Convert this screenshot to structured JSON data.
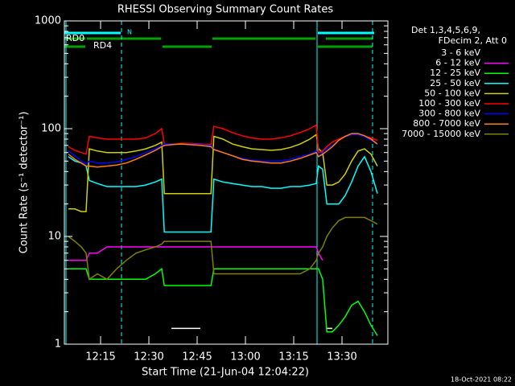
{
  "chart_data": {
    "type": "line",
    "title": "RHESSI Observing Summary Count Rates",
    "xlabel": "Start Time (21-Jun-04 12:04:22)",
    "ylabel": "Count Rate (s⁻¹ detector⁻¹)",
    "legend_title": [
      "Det 1,3,4,5,6,9,",
      "FDecim 2, Att 0"
    ],
    "annotations": [
      "RD0",
      "RD4",
      "N"
    ],
    "footer": "18-Oct-2021 08:22",
    "yscale": "log",
    "xlim": [
      3.75,
      104.25
    ],
    "ylim": [
      1,
      1000
    ],
    "xticks": [
      {
        "value": 15,
        "label": "12:15"
      },
      {
        "value": 30,
        "label": "12:30"
      },
      {
        "value": 45,
        "label": "12:45"
      },
      {
        "value": 60,
        "label": "13:00"
      },
      {
        "value": 75,
        "label": "13:15"
      },
      {
        "value": 90,
        "label": "13:30"
      }
    ],
    "yticks": [
      1,
      10,
      100,
      1000
    ],
    "x": [
      5,
      7,
      9,
      10.5,
      11.5,
      14,
      17,
      20,
      23,
      26,
      29,
      32,
      34,
      34.8,
      37,
      40,
      43,
      46,
      49.3,
      50.2,
      53,
      56,
      59,
      62,
      65,
      68,
      71,
      74,
      77,
      80,
      82,
      82.7,
      84,
      85.3,
      87,
      89,
      91,
      93,
      95,
      97,
      99,
      101
    ],
    "series": [
      {
        "name": "3 - 6 keV",
        "color": "#000000",
        "values": [
          null,
          null,
          null,
          null,
          null,
          null,
          null,
          null,
          null,
          null,
          null,
          null,
          null,
          null,
          1.4,
          1.4,
          1.4,
          1.4,
          null,
          null,
          null,
          null,
          null,
          null,
          null,
          null,
          null,
          null,
          null,
          null,
          null,
          null,
          null,
          1.4,
          1.4,
          null,
          null,
          null,
          null,
          null,
          null,
          null
        ]
      },
      {
        "name": "6 - 12 keV",
        "color": "#ff00ff",
        "values": [
          6,
          6,
          6,
          6,
          7,
          7,
          8,
          8,
          8,
          8,
          8,
          8,
          8,
          8,
          8,
          8,
          8,
          8,
          8,
          8,
          8,
          8,
          8,
          8,
          8,
          8,
          8,
          8,
          8,
          8,
          8,
          7,
          6,
          null,
          null,
          null,
          null,
          null,
          null,
          null,
          null,
          null
        ]
      },
      {
        "name": "12 - 25 keV",
        "color": "#00ff00",
        "values": [
          5,
          5,
          5,
          5,
          4,
          4,
          4,
          4,
          4,
          4,
          4,
          4.5,
          5,
          3.5,
          3.5,
          3.5,
          3.5,
          3.5,
          3.5,
          5,
          5,
          5,
          5,
          5,
          5,
          5,
          5,
          5,
          5,
          5,
          5,
          5,
          4,
          1.3,
          1.3,
          1.5,
          1.8,
          2.3,
          2.5,
          2,
          1.5,
          1.2
        ]
      },
      {
        "name": "25 - 50 keV",
        "color": "#00ffff",
        "values": [
          55,
          50,
          48,
          45,
          33,
          31,
          29,
          29,
          29,
          29,
          30,
          32,
          34,
          11,
          11,
          11,
          11,
          11,
          11,
          34,
          32,
          31,
          30,
          29,
          29,
          28,
          28,
          29,
          29,
          30,
          31,
          45,
          42,
          20,
          20,
          20,
          24,
          32,
          45,
          55,
          40,
          25
        ]
      },
      {
        "name": "50 - 100 keV",
        "color": "#d0d000",
        "values": [
          18,
          18,
          17,
          17,
          65,
          62,
          60,
          60,
          60,
          62,
          65,
          70,
          75,
          25,
          25,
          25,
          25,
          25,
          25,
          85,
          80,
          72,
          68,
          65,
          64,
          63,
          64,
          67,
          72,
          80,
          88,
          65,
          60,
          30,
          30,
          32,
          38,
          50,
          62,
          65,
          58,
          45
        ]
      },
      {
        "name": "100 - 300 keV",
        "color": "#ff0000",
        "values": [
          68,
          63,
          60,
          58,
          85,
          82,
          80,
          80,
          80,
          80,
          82,
          90,
          100,
          72,
          72,
          73,
          73,
          72,
          71,
          105,
          100,
          92,
          86,
          82,
          80,
          80,
          82,
          86,
          92,
          100,
          108,
          60,
          62,
          68,
          75,
          80,
          85,
          88,
          88,
          85,
          82,
          78
        ]
      },
      {
        "name": "300 - 800 keV",
        "color": "#0000ff",
        "values": [
          62,
          56,
          50,
          47,
          50,
          48,
          48,
          49,
          52,
          55,
          60,
          65,
          70,
          72,
          72,
          72,
          72,
          71,
          70,
          65,
          60,
          56,
          53,
          51,
          50,
          50,
          50,
          52,
          55,
          58,
          62,
          56,
          60,
          65,
          70,
          78,
          84,
          88,
          88,
          84,
          78,
          72
        ]
      },
      {
        "name": "800 - 7000 keV",
        "color": "#ff8000",
        "values": [
          58,
          52,
          48,
          45,
          45,
          44,
          45,
          46,
          48,
          52,
          57,
          63,
          68,
          70,
          71,
          72,
          71,
          70,
          68,
          64,
          60,
          56,
          52,
          50,
          49,
          48,
          48,
          50,
          53,
          57,
          60,
          55,
          58,
          62,
          68,
          78,
          85,
          90,
          90,
          86,
          80,
          72
        ]
      },
      {
        "name": "7000 - 15000 keV",
        "color": "#808000",
        "values": [
          10,
          9,
          8,
          7,
          4,
          4.5,
          4,
          5,
          6,
          7,
          7.5,
          8,
          8.5,
          9,
          9,
          9,
          9,
          9,
          9,
          4.5,
          4.5,
          4.5,
          4.5,
          4.5,
          4.5,
          4.5,
          4.5,
          4.5,
          4.5,
          5,
          6,
          7,
          8,
          10,
          12,
          14,
          15,
          15,
          15,
          15,
          14,
          13
        ]
      }
    ]
  }
}
